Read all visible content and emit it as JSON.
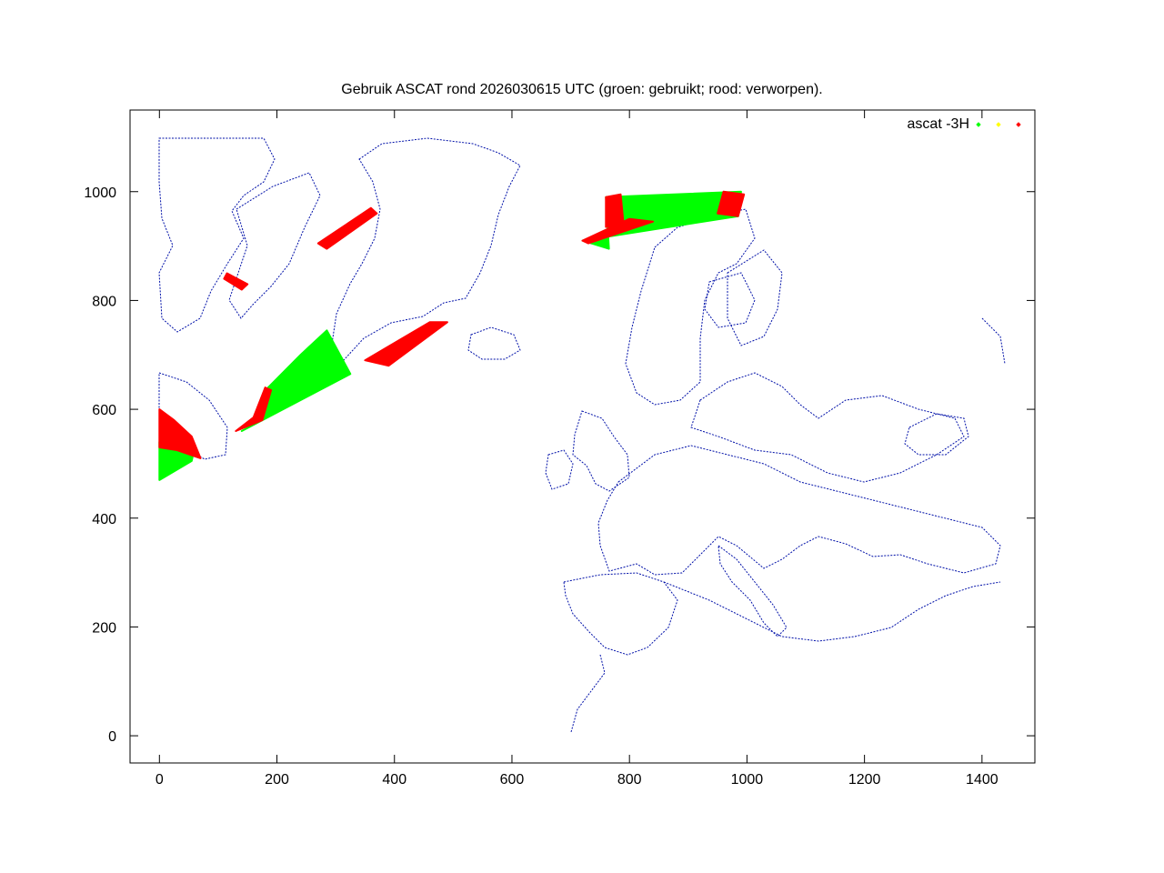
{
  "chart_data": {
    "type": "scatter",
    "title": "Gebruik ASCAT rond 2026030615 UTC (groen: gebruikt; rood: verworpen).",
    "xlabel": "",
    "ylabel": "",
    "xlim": [
      -50,
      1490
    ],
    "ylim": [
      -50,
      1150
    ],
    "x_ticks": [
      "0",
      "200",
      "400",
      "600",
      "800",
      "1000",
      "1200",
      "1400"
    ],
    "y_ticks": [
      "0",
      "200",
      "400",
      "600",
      "800",
      "1000"
    ],
    "x_tick_values": [
      0,
      200,
      400,
      600,
      800,
      1000,
      1200,
      1400
    ],
    "y_tick_values": [
      0,
      200,
      400,
      600,
      800,
      1000
    ],
    "grid": false,
    "legend_position": "top-right",
    "legend": {
      "label": "ascat -3H",
      "colors": [
        "#00ff00",
        "#ffff00",
        "#ff0000"
      ]
    },
    "colors": {
      "used": "#00ff00",
      "flagged": "#ffff00",
      "rejected": "#ff0000",
      "coastline": "#0010a8"
    },
    "series": [
      {
        "status": "used",
        "regions": [
          {
            "polygon": [
              [
                0,
                470
              ],
              [
                55,
                505
              ],
              [
                60,
                530
              ],
              [
                20,
                560
              ],
              [
                0,
                540
              ]
            ]
          },
          {
            "polygon": [
              [
                140,
                560
              ],
              [
                175,
                580
              ],
              [
                185,
                640
              ],
              [
                240,
                700
              ],
              [
                285,
                745
              ],
              [
                325,
                665
              ]
            ]
          },
          {
            "polygon": [
              [
                760,
                990
              ],
              [
                990,
                1000
              ],
              [
                985,
                955
              ],
              [
                720,
                910
              ],
              [
                765,
                895
              ]
            ]
          }
        ]
      },
      {
        "status": "rejected",
        "regions": [
          {
            "polygon": [
              [
                270,
                905
              ],
              [
                360,
                970
              ],
              [
                370,
                960
              ],
              [
                285,
                895
              ]
            ]
          },
          {
            "polygon": [
              [
                110,
                840
              ],
              [
                140,
                820
              ],
              [
                150,
                830
              ],
              [
                115,
                850
              ]
            ]
          },
          {
            "polygon": [
              [
                350,
                690
              ],
              [
                460,
                760
              ],
              [
                490,
                760
              ],
              [
                390,
                680
              ]
            ]
          },
          {
            "polygon": [
              [
                0,
                530
              ],
              [
                30,
                525
              ],
              [
                70,
                510
              ],
              [
                55,
                550
              ],
              [
                25,
                580
              ],
              [
                0,
                600
              ]
            ]
          },
          {
            "polygon": [
              [
                130,
                560
              ],
              [
                175,
                580
              ],
              [
                190,
                635
              ],
              [
                180,
                640
              ],
              [
                160,
                585
              ]
            ]
          },
          {
            "polygon": [
              [
                760,
                990
              ],
              [
                785,
                995
              ],
              [
                790,
                940
              ],
              [
                760,
                935
              ]
            ]
          },
          {
            "polygon": [
              [
                960,
                1000
              ],
              [
                995,
                995
              ],
              [
                985,
                955
              ],
              [
                950,
                960
              ]
            ]
          },
          {
            "polygon": [
              [
                720,
                910
              ],
              [
                800,
                950
              ],
              [
                840,
                945
              ],
              [
                730,
                905
              ]
            ]
          }
        ]
      }
    ]
  }
}
